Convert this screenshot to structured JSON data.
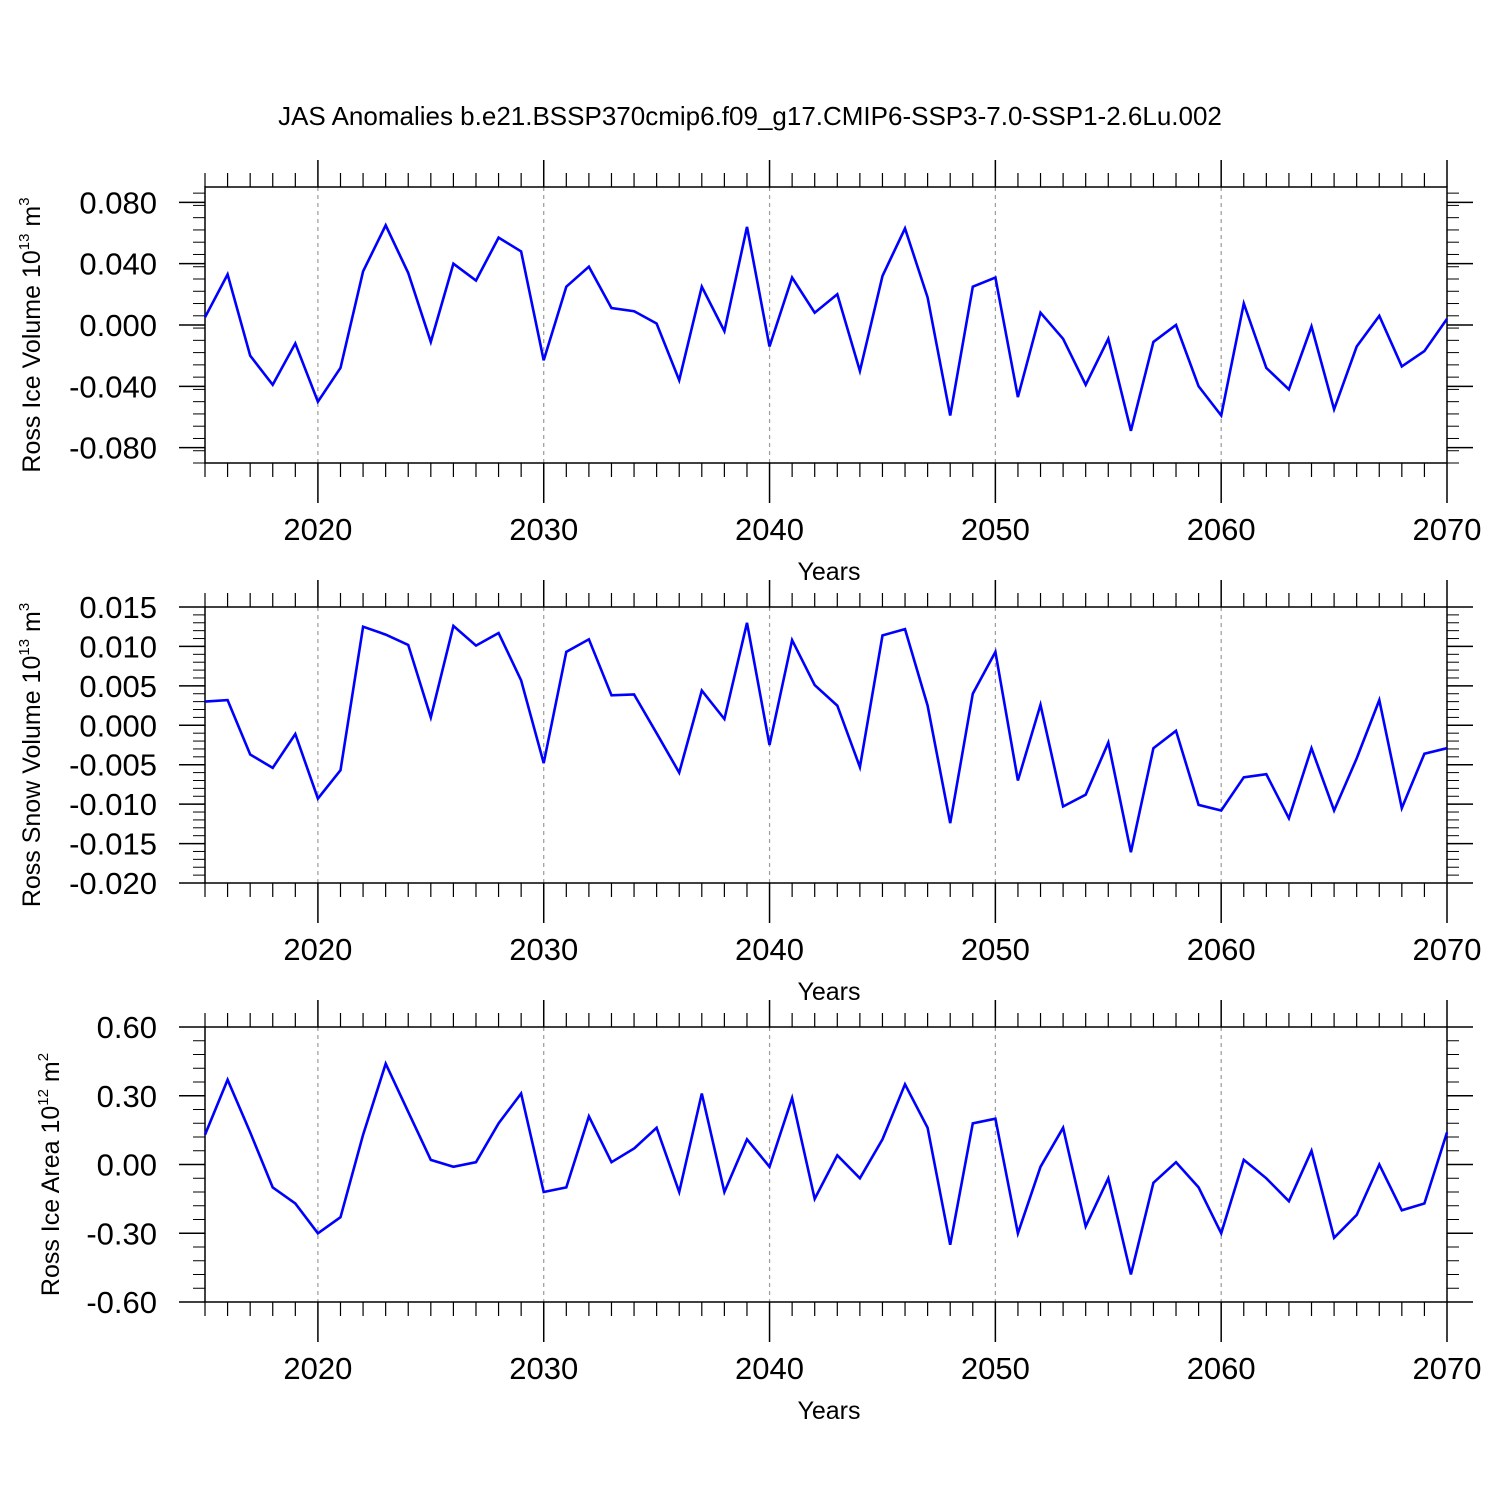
{
  "title": "JAS Anomalies b.e21.BSSP370cmip6.f09_g17.CMIP6-SSP3-7.0-SSP1-2.6Lu.002",
  "line_color": "#0000ff",
  "chart_data": [
    {
      "type": "line",
      "title": "JAS Anomalies b.e21.BSSP370cmip6.f09_g17.CMIP6-SSP3-7.0-SSP1-2.6Lu.002",
      "xlabel": "Years",
      "ylabel": {
        "prefix": "Ross Ice Volume 10",
        "exponent": "13",
        "unit": " m",
        "unit_exponent": "3"
      },
      "xlim": [
        2015,
        2070
      ],
      "ylim": [
        -0.09,
        0.09
      ],
      "xticks": [
        "2020",
        "2030",
        "2040",
        "2050",
        "2060",
        "2070"
      ],
      "yticks": [
        "0.080",
        "0.040",
        "0.000",
        "-0.040",
        "-0.080"
      ],
      "x": [
        2015,
        2016,
        2017,
        2018,
        2019,
        2020,
        2021,
        2022,
        2023,
        2024,
        2025,
        2026,
        2027,
        2028,
        2029,
        2030,
        2031,
        2032,
        2033,
        2034,
        2035,
        2036,
        2037,
        2038,
        2039,
        2040,
        2041,
        2042,
        2043,
        2044,
        2045,
        2046,
        2047,
        2048,
        2049,
        2050,
        2051,
        2052,
        2053,
        2054,
        2055,
        2056,
        2057,
        2058,
        2059,
        2060,
        2061,
        2062,
        2063,
        2064,
        2065,
        2066,
        2067,
        2068,
        2069,
        2070
      ],
      "series": [
        {
          "values": [
            0.005,
            0.033,
            -0.02,
            -0.039,
            -0.012,
            -0.05,
            -0.028,
            0.035,
            0.065,
            0.034,
            -0.011,
            0.04,
            0.029,
            0.057,
            0.048,
            -0.023,
            0.025,
            0.038,
            0.011,
            0.009,
            0.001,
            -0.036,
            0.025,
            -0.004,
            0.064,
            -0.014,
            0.031,
            0.008,
            0.02,
            -0.03,
            0.032,
            0.063,
            0.018,
            -0.059,
            0.025,
            0.031,
            -0.047,
            0.008,
            -0.009,
            -0.039,
            -0.009,
            -0.069,
            -0.011,
            0.0,
            -0.04,
            -0.059,
            0.014,
            -0.028,
            -0.042,
            -0.001,
            -0.055,
            -0.014,
            0.006,
            -0.027,
            -0.017,
            0.004
          ]
        }
      ]
    },
    {
      "type": "line",
      "xlabel": "Years",
      "ylabel": {
        "prefix": "Ross Snow Volume 10",
        "exponent": "13",
        "unit": " m",
        "unit_exponent": "3"
      },
      "xlim": [
        2015,
        2070
      ],
      "ylim": [
        -0.02,
        0.015
      ],
      "xticks": [
        "2020",
        "2030",
        "2040",
        "2050",
        "2060",
        "2070"
      ],
      "yticks": [
        "0.015",
        "0.010",
        "0.005",
        "0.000",
        "-0.005",
        "-0.010",
        "-0.015",
        "-0.020"
      ],
      "x": [
        2015,
        2016,
        2017,
        2018,
        2019,
        2020,
        2021,
        2022,
        2023,
        2024,
        2025,
        2026,
        2027,
        2028,
        2029,
        2030,
        2031,
        2032,
        2033,
        2034,
        2035,
        2036,
        2037,
        2038,
        2039,
        2040,
        2041,
        2042,
        2043,
        2044,
        2045,
        2046,
        2047,
        2048,
        2049,
        2050,
        2051,
        2052,
        2053,
        2054,
        2055,
        2056,
        2057,
        2058,
        2059,
        2060,
        2061,
        2062,
        2063,
        2064,
        2065,
        2066,
        2067,
        2068,
        2069,
        2070
      ],
      "series": [
        {
          "values": [
            0.003,
            0.0032,
            -0.0037,
            -0.0054,
            -0.0011,
            -0.0093,
            -0.0057,
            0.0125,
            0.0115,
            0.0102,
            0.001,
            0.0126,
            0.0101,
            0.0117,
            0.0057,
            -0.0048,
            0.0093,
            0.0109,
            0.0038,
            0.0039,
            -0.001,
            -0.006,
            0.0044,
            0.0008,
            0.013,
            -0.0025,
            0.0108,
            0.0051,
            0.0025,
            -0.0053,
            0.0114,
            0.0122,
            0.0025,
            -0.0124,
            0.004,
            0.0093,
            -0.007,
            0.0026,
            -0.0103,
            -0.0088,
            -0.0022,
            -0.0161,
            -0.0029,
            -0.0007,
            -0.0101,
            -0.0108,
            -0.0066,
            -0.0062,
            -0.0118,
            -0.0029,
            -0.0108,
            -0.0042,
            0.0032,
            -0.0105,
            -0.0036,
            -0.0029
          ]
        }
      ]
    },
    {
      "type": "line",
      "xlabel": "Years",
      "ylabel": {
        "prefix": "Ross Ice Area 10",
        "exponent": "12",
        "unit": " m",
        "unit_exponent": "2"
      },
      "xlim": [
        2015,
        2070
      ],
      "ylim": [
        -0.6,
        0.6
      ],
      "xticks": [
        "2020",
        "2030",
        "2040",
        "2050",
        "2060",
        "2070"
      ],
      "yticks": [
        "0.60",
        "0.30",
        "0.00",
        "-0.30",
        "-0.60"
      ],
      "x": [
        2015,
        2016,
        2017,
        2018,
        2019,
        2020,
        2021,
        2022,
        2023,
        2024,
        2025,
        2026,
        2027,
        2028,
        2029,
        2030,
        2031,
        2032,
        2033,
        2034,
        2035,
        2036,
        2037,
        2038,
        2039,
        2040,
        2041,
        2042,
        2043,
        2044,
        2045,
        2046,
        2047,
        2048,
        2049,
        2050,
        2051,
        2052,
        2053,
        2054,
        2055,
        2056,
        2057,
        2058,
        2059,
        2060,
        2061,
        2062,
        2063,
        2064,
        2065,
        2066,
        2067,
        2068,
        2069,
        2070
      ],
      "series": [
        {
          "values": [
            0.13,
            0.37,
            0.14,
            -0.1,
            -0.17,
            -0.3,
            -0.23,
            0.13,
            0.44,
            0.23,
            0.02,
            -0.01,
            0.01,
            0.18,
            0.31,
            -0.12,
            -0.1,
            0.21,
            0.01,
            0.07,
            0.16,
            -0.12,
            0.31,
            -0.12,
            0.11,
            -0.01,
            0.29,
            -0.15,
            0.04,
            -0.06,
            0.11,
            0.35,
            0.16,
            -0.35,
            0.18,
            0.2,
            -0.3,
            -0.01,
            0.16,
            -0.27,
            -0.06,
            -0.48,
            -0.08,
            0.01,
            -0.1,
            -0.3,
            0.02,
            -0.06,
            -0.16,
            0.06,
            -0.32,
            -0.22,
            0.0,
            -0.2,
            -0.17,
            0.14
          ]
        }
      ]
    }
  ]
}
